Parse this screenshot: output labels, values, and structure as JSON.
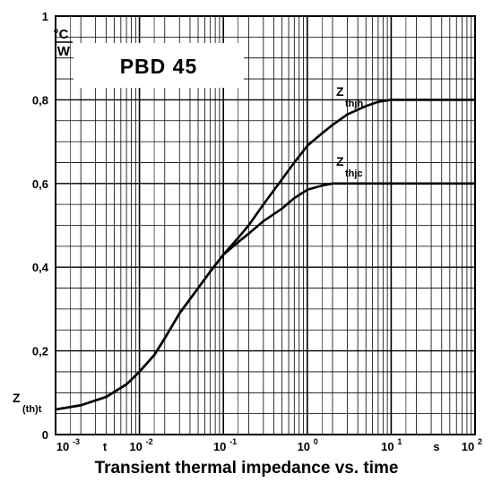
{
  "chart_data": {
    "type": "line",
    "title": "PBD 45",
    "caption": "Transient thermal impedance vs. time",
    "ylabel_unit_top": "°C",
    "ylabel_unit_bottom": "W",
    "xlabel_unit": "s",
    "x_scale": "log",
    "xlim": [
      0.001,
      100
    ],
    "ylim": [
      0,
      1
    ],
    "y_ticks": [
      "0",
      "0,2",
      "0,4",
      "0,6",
      "0,8",
      "1"
    ],
    "x_ticks": [
      {
        "base": "10",
        "exp": "-3"
      },
      {
        "base": "10",
        "exp": "-2"
      },
      {
        "base": "10",
        "exp": "-1"
      },
      {
        "base": "10",
        "exp": "0"
      },
      {
        "base": "10",
        "exp": "1"
      },
      {
        "base": "10",
        "exp": "2"
      }
    ],
    "x_extra_label": "t",
    "grid": true,
    "series": [
      {
        "name": "Z_thjh",
        "label_main": "Z",
        "label_sub": "thjh",
        "x": [
          0.001,
          0.002,
          0.004,
          0.007,
          0.01,
          0.015,
          0.02,
          0.03,
          0.05,
          0.07,
          0.1,
          0.15,
          0.2,
          0.3,
          0.5,
          0.7,
          1,
          1.5,
          2,
          3,
          5,
          7,
          10,
          15,
          20,
          50,
          100
        ],
        "y": [
          0.06,
          0.07,
          0.09,
          0.12,
          0.15,
          0.19,
          0.23,
          0.29,
          0.35,
          0.39,
          0.43,
          0.47,
          0.5,
          0.55,
          0.61,
          0.65,
          0.69,
          0.72,
          0.74,
          0.765,
          0.785,
          0.795,
          0.8,
          0.8,
          0.8,
          0.8,
          0.8
        ]
      },
      {
        "name": "Z_thjc",
        "label_main": "Z",
        "label_sub": "thjc",
        "x": [
          0.001,
          0.002,
          0.004,
          0.007,
          0.01,
          0.015,
          0.02,
          0.03,
          0.05,
          0.07,
          0.1,
          0.15,
          0.2,
          0.3,
          0.5,
          0.7,
          1,
          1.5,
          2,
          3,
          5,
          10,
          100
        ],
        "y": [
          0.06,
          0.07,
          0.09,
          0.12,
          0.15,
          0.19,
          0.23,
          0.29,
          0.35,
          0.39,
          0.43,
          0.46,
          0.48,
          0.51,
          0.54,
          0.565,
          0.585,
          0.595,
          0.6,
          0.6,
          0.6,
          0.6,
          0.6
        ]
      }
    ],
    "annotation": {
      "main": "Z",
      "sub": "(th)t"
    }
  }
}
